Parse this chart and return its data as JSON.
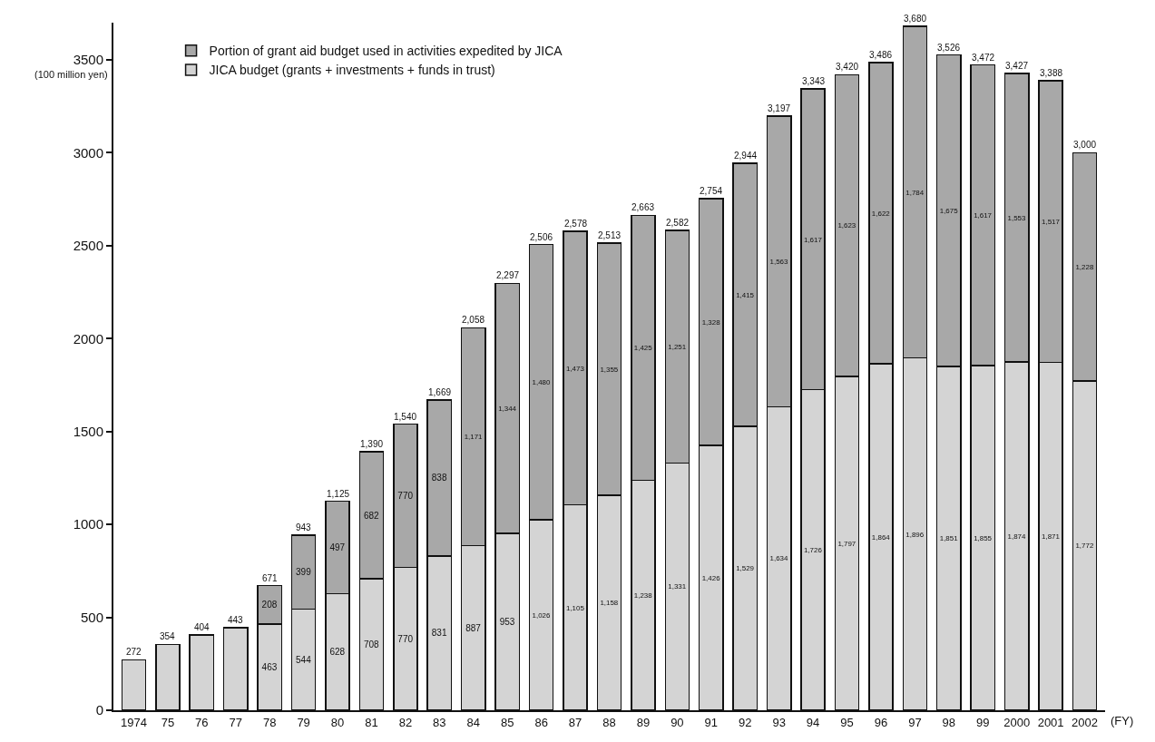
{
  "chart_data": {
    "type": "bar",
    "stacked": true,
    "xlabel": "(FY)",
    "ylabel": "(100 million yen)",
    "categories": [
      "1974",
      "75",
      "76",
      "77",
      "78",
      "79",
      "80",
      "81",
      "82",
      "83",
      "84",
      "85",
      "86",
      "87",
      "88",
      "89",
      "90",
      "91",
      "92",
      "93",
      "94",
      "95",
      "96",
      "97",
      "98",
      "99",
      "2000",
      "2001",
      "2002"
    ],
    "series": [
      {
        "name": "JICA budget (grants + investments + funds in trust)",
        "color": "#d4d4d4",
        "values": [
          272,
          354,
          404,
          443,
          463,
          544,
          628,
          708,
          770,
          831,
          887,
          953,
          1026,
          1105,
          1158,
          1238,
          1331,
          1426,
          1529,
          1634,
          1726,
          1797,
          1864,
          1896,
          1851,
          1855,
          1874,
          1871,
          1772
        ],
        "value_labels": [
          null,
          null,
          null,
          null,
          "463",
          "544",
          "628",
          "708",
          "770",
          "831",
          "887",
          "953",
          "1,026",
          "1,105",
          "1,158",
          "1,238",
          "1,331",
          "1,426",
          "1,529",
          "1,634",
          "1,726",
          "1,797",
          "1,864",
          "1,896",
          "1,851",
          "1,855",
          "1,874",
          "1,871",
          "1,772"
        ]
      },
      {
        "name": "Portion of grant aid budget used in activities expedited by JICA",
        "color": "#a8a8a8",
        "values": [
          null,
          null,
          null,
          null,
          208,
          399,
          497,
          682,
          770,
          838,
          1171,
          1344,
          1480,
          1473,
          1355,
          1425,
          1251,
          1328,
          1415,
          1563,
          1617,
          1623,
          1622,
          1784,
          1675,
          1617,
          1553,
          1517,
          1228
        ],
        "value_labels": [
          null,
          null,
          null,
          null,
          "208",
          "399",
          "497",
          "682",
          "770",
          "838",
          "1,171",
          "1,344",
          "1,480",
          "1,473",
          "1,355",
          "1,425",
          "1,251",
          "1,328",
          "1,415",
          "1,563",
          "1,617",
          "1,623",
          "1,622",
          "1,784",
          "1,675",
          "1,617",
          "1,553",
          "1,517",
          "1,228"
        ]
      }
    ],
    "totals": [
      "272",
      "354",
      "404",
      "443",
      "671",
      "943",
      "1,125",
      "1,390",
      "1,540",
      "1,669",
      "2,058",
      "2,297",
      "2,506",
      "2,578",
      "2,513",
      "2,663",
      "2,582",
      "2,754",
      "2,944",
      "3,197",
      "3,343",
      "3,420",
      "3,486",
      "3,680",
      "3,526",
      "3,472",
      "3,427",
      "3,388",
      "3,000"
    ],
    "ylim": [
      0,
      3700
    ],
    "yticks": [
      0,
      500,
      1000,
      1500,
      2000,
      2500,
      3000,
      3500
    ],
    "grid": false,
    "legend": "top left"
  }
}
